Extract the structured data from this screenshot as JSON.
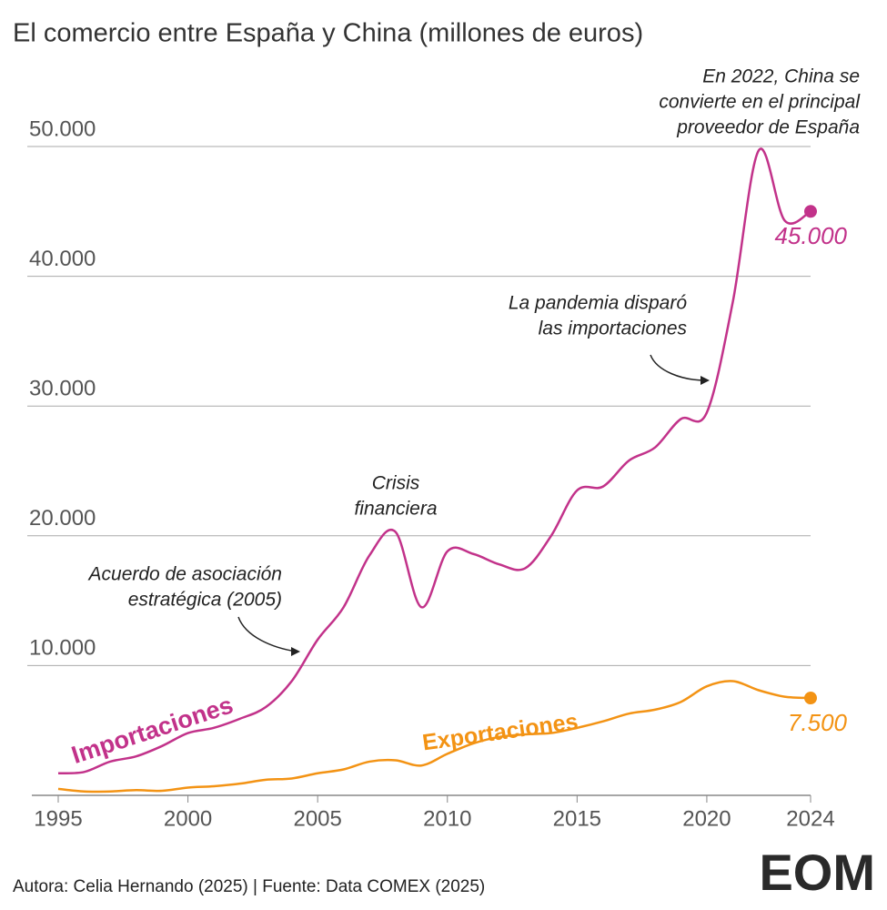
{
  "chart_data": {
    "type": "line",
    "title": "El comercio entre España y China (millones de euros)",
    "source": "Autora: Celia Hernando (2025) | Fuente: Data COMEX (2025)",
    "logo": "EOM",
    "x": [
      1995,
      1996,
      1997,
      1998,
      1999,
      2000,
      2001,
      2002,
      2003,
      2004,
      2005,
      2006,
      2007,
      2008,
      2009,
      2010,
      2011,
      2012,
      2013,
      2014,
      2015,
      2016,
      2017,
      2018,
      2019,
      2020,
      2021,
      2022,
      2023,
      2024
    ],
    "series": [
      {
        "name": "Importaciones",
        "color": "#c2328a",
        "values": [
          1700,
          1800,
          2600,
          3000,
          3800,
          4800,
          5200,
          5900,
          6800,
          8800,
          12000,
          14500,
          18500,
          20300,
          14500,
          18800,
          18600,
          17800,
          17500,
          20000,
          23500,
          23800,
          25800,
          26800,
          29000,
          29500,
          38000,
          49700,
          44300,
          45000
        ],
        "value_labels": [
          null,
          null,
          null,
          null,
          null,
          null,
          null,
          null,
          null,
          null,
          null,
          null,
          null,
          null,
          null,
          null,
          null,
          null,
          null,
          null,
          null,
          null,
          null,
          null,
          null,
          null,
          null,
          null,
          null,
          "45.000"
        ]
      },
      {
        "name": "Exportaciones",
        "color": "#f39314",
        "values": [
          500,
          300,
          300,
          400,
          350,
          600,
          700,
          900,
          1200,
          1300,
          1700,
          2000,
          2600,
          2700,
          2300,
          3200,
          4000,
          4500,
          4700,
          4800,
          5200,
          5700,
          6300,
          6600,
          7200,
          8400,
          8800,
          8100,
          7600,
          7500
        ],
        "value_labels": [
          null,
          null,
          null,
          null,
          null,
          null,
          null,
          null,
          null,
          null,
          null,
          null,
          null,
          null,
          null,
          null,
          null,
          null,
          null,
          null,
          null,
          null,
          null,
          null,
          null,
          null,
          null,
          null,
          null,
          "7.500"
        ]
      }
    ],
    "xlim": [
      1995,
      2024
    ],
    "xticks": [
      1995,
      2000,
      2005,
      2010,
      2015,
      2020,
      2024
    ],
    "ylim": [
      0,
      50000
    ],
    "yticks": [
      {
        "value": 10000,
        "label": "10.000"
      },
      {
        "value": 20000,
        "label": "20.000"
      },
      {
        "value": 30000,
        "label": "30.000"
      },
      {
        "value": 40000,
        "label": "40.000"
      },
      {
        "value": 50000,
        "label": "50.000"
      }
    ],
    "grid": true,
    "annotations": [
      {
        "lines": [
          "Acuerdo de asociación",
          "estratégica (2005)"
        ]
      },
      {
        "lines": [
          "Crisis",
          "financiera"
        ]
      },
      {
        "lines": [
          "La pandemia disparó",
          "las importaciones"
        ]
      },
      {
        "lines": [
          "En 2022, China se",
          "convierte en el principal",
          "proveedor de España"
        ]
      }
    ]
  }
}
